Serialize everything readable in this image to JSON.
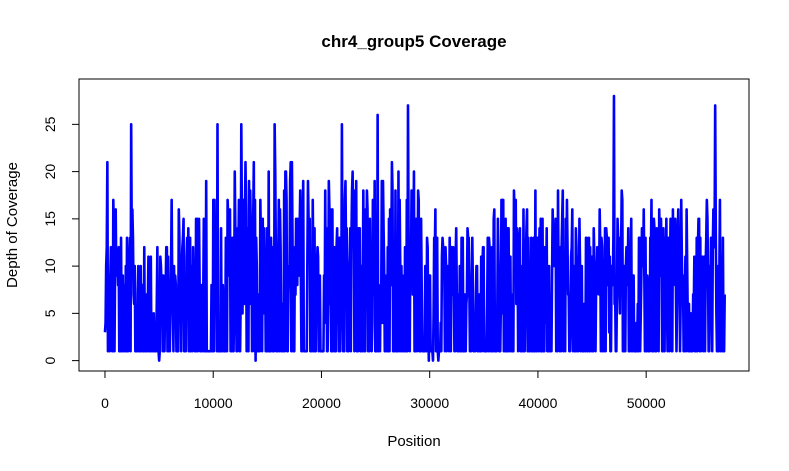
{
  "chart_data": {
    "type": "line",
    "title": "chr4_group5 Coverage",
    "xlabel": "Position",
    "ylabel": "Depth of Coverage",
    "xlim": [
      -2400,
      59500
    ],
    "ylim": [
      -1.1,
      29.8
    ],
    "xticks": [
      0,
      10000,
      20000,
      30000,
      40000,
      50000
    ],
    "xtick_labels": [
      "0",
      "10000",
      "20000",
      "30000",
      "40000",
      "50000"
    ],
    "yticks": [
      0,
      5,
      10,
      15,
      20,
      25
    ],
    "ytick_labels": [
      "0",
      "5",
      "10",
      "15",
      "20",
      "25"
    ],
    "series": [
      {
        "name": "coverage",
        "color": "#0000ff",
        "x_start": 0,
        "x_end": 57300,
        "min": 0,
        "max": 28,
        "peaks": [
          {
            "x": 200,
            "y": 21
          },
          {
            "x": 2400,
            "y": 25
          },
          {
            "x": 10400,
            "y": 25
          },
          {
            "x": 12600,
            "y": 25
          },
          {
            "x": 15700,
            "y": 25
          },
          {
            "x": 21900,
            "y": 25
          },
          {
            "x": 25200,
            "y": 26
          },
          {
            "x": 28000,
            "y": 27
          },
          {
            "x": 47000,
            "y": 28
          },
          {
            "x": 56400,
            "y": 27
          }
        ],
        "zeros": [
          {
            "x": 5000,
            "y": 0
          },
          {
            "x": 13900,
            "y": 0
          },
          {
            "x": 29900,
            "y": 0
          },
          {
            "x": 30300,
            "y": 0
          },
          {
            "x": 30800,
            "y": 0
          }
        ]
      }
    ]
  }
}
